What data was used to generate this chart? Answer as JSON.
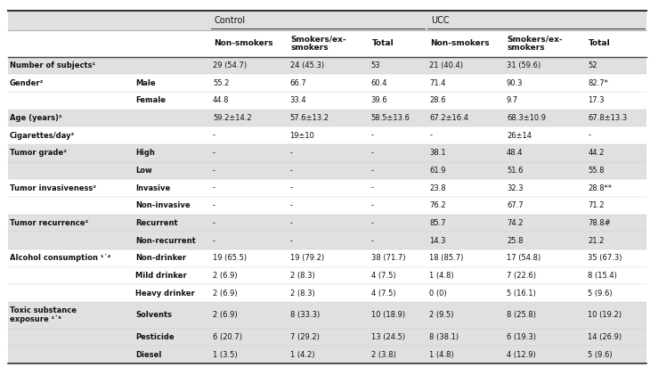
{
  "figsize": [
    7.3,
    4.12
  ],
  "dpi": 100,
  "bg_light": "#e0e0e0",
  "bg_white": "#f5f5f5",
  "rows": [
    [
      "Number of subjects¹",
      "",
      "29 (54.7)",
      "24 (45.3)",
      "53",
      "21 (40.4)",
      "31 (59.6)",
      "52"
    ],
    [
      "Gender²",
      "Male",
      "55.2",
      "66.7",
      "60.4",
      "71.4",
      "90.3",
      "82.7*"
    ],
    [
      "",
      "Female",
      "44.8",
      "33.4",
      "39.6",
      "28.6",
      "9.7",
      "17.3"
    ],
    [
      "Age (years)²",
      "",
      "59.2±14.2",
      "57.6±13.2",
      "58.5±13.6",
      "67.2±16.4",
      "68.3±10.9",
      "67.8±13.3"
    ],
    [
      "Cigarettes/day³",
      "",
      "-",
      "19±10",
      "-",
      "-",
      "26±14",
      "-"
    ],
    [
      "Tumor grade²",
      "High",
      "-",
      "-",
      "-",
      "38.1",
      "48.4",
      "44.2"
    ],
    [
      "",
      "Low",
      "-",
      "-",
      "-",
      "61.9",
      "51.6",
      "55.8"
    ],
    [
      "Tumor invasiveness²",
      "Invasive",
      "-",
      "-",
      "-",
      "23.8",
      "32.3",
      "28.8**"
    ],
    [
      "",
      "Non-invasive",
      "-",
      "-",
      "-",
      "76.2",
      "67.7",
      "71.2"
    ],
    [
      "Tumor recurrence²",
      "Recurrent",
      "-",
      "-",
      "-",
      "85.7",
      "74.2",
      "78.8#"
    ],
    [
      "",
      "Non-recurrent",
      "-",
      "-",
      "-",
      "14.3",
      "25.8",
      "21.2"
    ],
    [
      "Alcohol consumption ¹˙⁴",
      "Non-drinker",
      "19 (65.5)",
      "19 (79.2)",
      "38 (71.7)",
      "18 (85.7)",
      "17 (54.8)",
      "35 (67.3)"
    ],
    [
      "",
      "Mild drinker",
      "2 (6.9)",
      "2 (8.3)",
      "4 (7.5)",
      "1 (4.8)",
      "7 (22.6)",
      "8 (15.4)"
    ],
    [
      "",
      "Heavy drinker",
      "2 (6.9)",
      "2 (8.3)",
      "4 (7.5)",
      "0 (0)",
      "5 (16.1)",
      "5 (9.6)"
    ],
    [
      "Toxic substance\nexposure ¹˙⁵",
      "Solvents",
      "2 (6.9)",
      "8 (33.3)",
      "10 (18.9)",
      "2 (9.5)",
      "8 (25.8)",
      "10 (19.2)"
    ],
    [
      "",
      "Pesticide",
      "6 (20.7)",
      "7 (29.2)",
      "13 (24.5)",
      "8 (38.1)",
      "6 (19.3)",
      "14 (26.9)"
    ],
    [
      "",
      "Diesel",
      "1 (3.5)",
      "1 (4.2)",
      "2 (3.8)",
      "1 (4.8)",
      "4 (12.9)",
      "5 (9.6)"
    ]
  ],
  "col_widths_rel": [
    1.55,
    0.95,
    0.95,
    1.0,
    0.72,
    0.95,
    1.0,
    0.75
  ],
  "group_first_rows": [
    0,
    1,
    3,
    4,
    5,
    7,
    9,
    11,
    14
  ],
  "group_colors": [
    "light",
    "white",
    "light",
    "white",
    "light",
    "white",
    "light",
    "white",
    "light"
  ]
}
